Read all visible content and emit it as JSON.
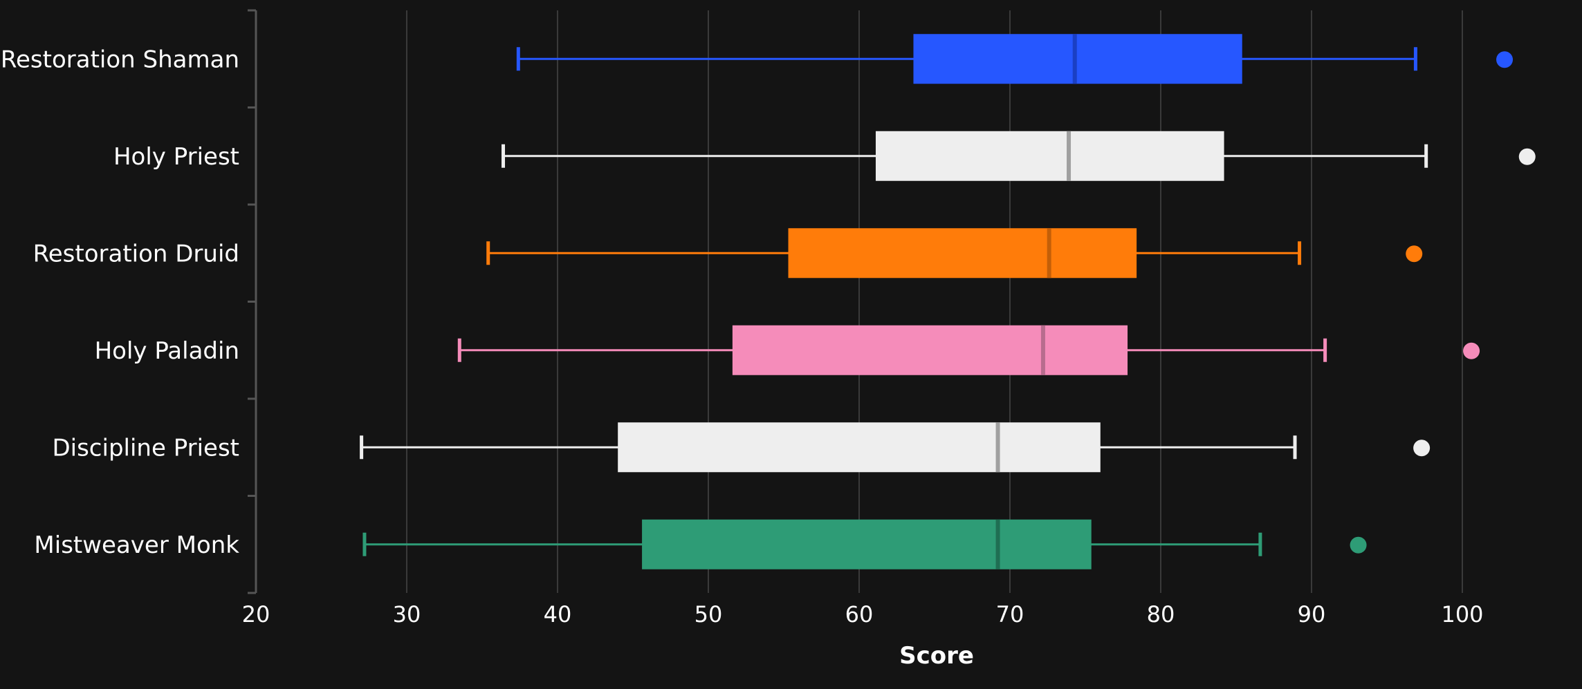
{
  "chart_data": {
    "type": "box",
    "orientation": "horizontal",
    "xlabel": "Score",
    "ylabel": "",
    "xlim": [
      20,
      102
    ],
    "xticks": [
      20,
      30,
      40,
      50,
      60,
      70,
      80,
      90,
      100
    ],
    "grid": true,
    "categories": [
      "Restoration Shaman",
      "Holy Priest",
      "Restoration Druid",
      "Holy Paladin",
      "Discipline Priest",
      "Mistweaver Monk"
    ],
    "series": [
      {
        "category": "Restoration Shaman",
        "color": "#2657ff",
        "median_color": "#1a3fc4",
        "whisker_low": 37.4,
        "q1": 63.6,
        "median": 74.3,
        "q3": 85.4,
        "whisker_high": 96.9,
        "outliers": [
          102.8
        ]
      },
      {
        "category": "Holy Priest",
        "color": "#eeeeee",
        "median_color": "#a0a0a0",
        "whisker_low": 36.4,
        "q1": 61.1,
        "median": 73.9,
        "q3": 84.2,
        "whisker_high": 97.6,
        "outliers": [
          104.3
        ]
      },
      {
        "category": "Restoration Druid",
        "color": "#ff7c0a",
        "median_color": "#c45f08",
        "whisker_low": 35.4,
        "q1": 55.3,
        "median": 72.6,
        "q3": 78.4,
        "whisker_high": 89.2,
        "outliers": [
          96.8
        ]
      },
      {
        "category": "Holy Paladin",
        "color": "#f58cba",
        "median_color": "#b86c8e",
        "whisker_low": 33.5,
        "q1": 51.6,
        "median": 72.2,
        "q3": 77.8,
        "whisker_high": 90.9,
        "outliers": [
          100.6
        ]
      },
      {
        "category": "Discipline Priest",
        "color": "#eeeeee",
        "median_color": "#a0a0a0",
        "whisker_low": 27.0,
        "q1": 44.0,
        "median": 69.2,
        "q3": 76.0,
        "whisker_high": 88.9,
        "outliers": [
          97.3
        ]
      },
      {
        "category": "Mistweaver Monk",
        "color": "#2e9c76",
        "median_color": "#1f6e53",
        "whisker_low": 27.2,
        "q1": 45.6,
        "median": 69.2,
        "q3": 75.4,
        "whisker_high": 86.6,
        "outliers": [
          93.1
        ]
      }
    ]
  }
}
